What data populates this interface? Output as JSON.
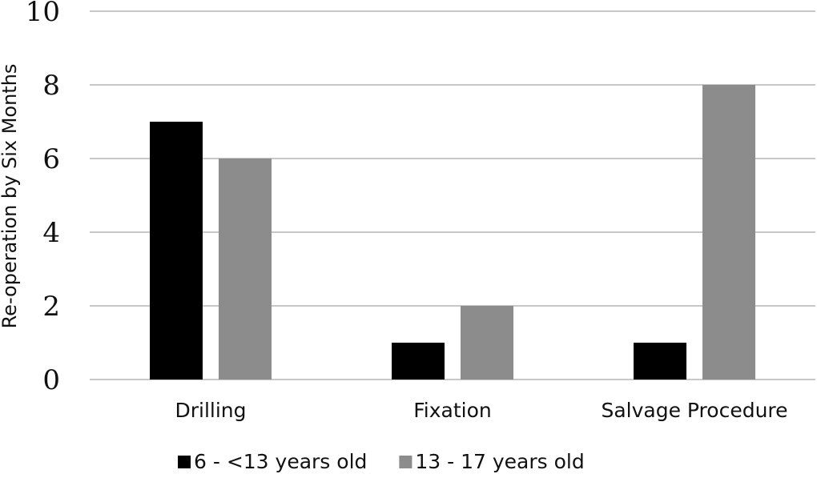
{
  "chart_data": {
    "type": "bar",
    "title": "",
    "xlabel": "",
    "ylabel": "Re-operation by Six Months",
    "ylim": [
      0,
      10
    ],
    "yticks": [
      0,
      2,
      4,
      6,
      8,
      10
    ],
    "grid": true,
    "legend_position": "bottom",
    "categories": [
      "Drilling",
      "Fixation",
      "Salvage Procedure"
    ],
    "series": [
      {
        "name": "6 - <13 years old",
        "color": "#000000",
        "values": [
          7,
          1,
          1
        ]
      },
      {
        "name": "13 - 17 years old",
        "color": "#8c8c8c",
        "values": [
          6,
          2,
          8
        ]
      }
    ]
  }
}
